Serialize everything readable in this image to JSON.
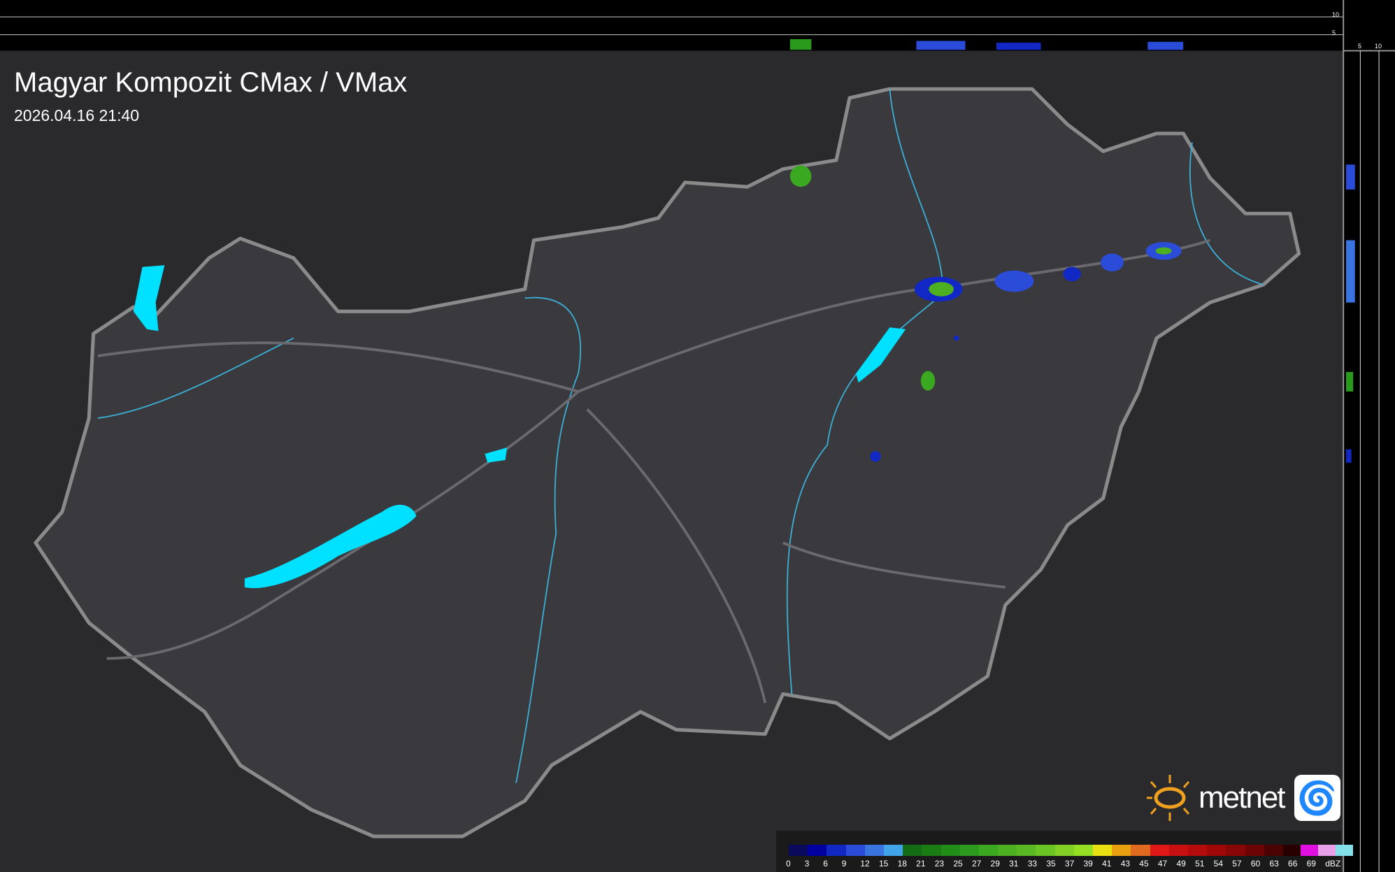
{
  "header": {
    "title": "Magyar Kompozit CMax / VMax",
    "timestamp": "2026.04.16 21:40"
  },
  "side_axis": {
    "top_ticks": [
      "10",
      "5"
    ],
    "right_ticks": [
      "5",
      "10"
    ]
  },
  "legend": {
    "unit": "dBZ",
    "labels": [
      "0",
      "3",
      "6",
      "9",
      "12",
      "15",
      "18",
      "21",
      "23",
      "25",
      "27",
      "29",
      "31",
      "33",
      "35",
      "37",
      "39",
      "41",
      "43",
      "45",
      "47",
      "49",
      "51",
      "54",
      "57",
      "60",
      "63",
      "66",
      "69"
    ],
    "colors": [
      "#0a0a5c",
      "#0000a0",
      "#1228c4",
      "#2a4cd8",
      "#3a74e0",
      "#42a4e8",
      "#146c14",
      "#1a7c12",
      "#228c18",
      "#2c9a1c",
      "#3aa820",
      "#4cb020",
      "#5ab822",
      "#6ac424",
      "#82d024",
      "#96e024",
      "#e8e010",
      "#e8a010",
      "#e06a20",
      "#e01818",
      "#c81010",
      "#b40c0c",
      "#a00808",
      "#880606",
      "#6c0404",
      "#4a0202",
      "#280000",
      "#e010e0",
      "#e8a0e8",
      "#84e0e8"
    ]
  },
  "brand": {
    "name": "metnet",
    "accent": "#f0a020"
  },
  "colors": {
    "water": "#00e0ff",
    "river": "#3ab0d8",
    "border": "#8a8a8a"
  }
}
